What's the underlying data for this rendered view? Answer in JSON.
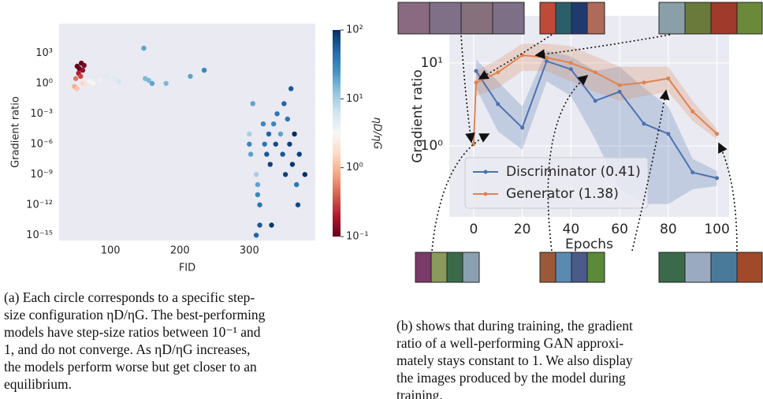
{
  "chart_data": [
    {
      "type": "scatter",
      "xlabel": "FID",
      "ylabel": "Gradient ratio",
      "log_y": true,
      "grid": false,
      "xlim": [
        26,
        395
      ],
      "xticks": [
        100,
        200,
        300
      ],
      "ylim": [
        3e-16,
        800000.0
      ],
      "yticks": [
        {
          "value": 1000.0,
          "label": "10³"
        },
        {
          "value": 1,
          "label": "10⁰"
        },
        {
          "value": 0.001,
          "label": "10⁻³"
        },
        {
          "value": 1e-06,
          "label": "10⁻⁶"
        },
        {
          "value": 1e-09,
          "label": "10⁻⁹"
        },
        {
          "value": 1e-12,
          "label": "10⁻¹²"
        },
        {
          "value": 1e-15,
          "label": "10⁻¹⁵"
        }
      ],
      "colorbar_label": "ηD/ηG",
      "clim": [
        0.1,
        100
      ],
      "cticks": [
        {
          "value": 100,
          "label": "10²"
        },
        {
          "value": 10,
          "label": "10¹"
        },
        {
          "value": 1,
          "label": "10⁰"
        },
        {
          "value": 0.1,
          "label": "10⁻¹"
        }
      ],
      "colormap": [
        "#67001f",
        "#b2182b",
        "#d6604d",
        "#f4a582",
        "#fddbc7",
        "#f7f7f7",
        "#d1e5f0",
        "#92c5de",
        "#4393c3",
        "#2166ac",
        "#053061"
      ],
      "x": [
        52,
        55,
        58,
        60,
        54,
        62,
        57,
        50,
        48,
        52,
        60,
        65,
        70,
        75,
        85,
        95,
        105,
        112,
        148,
        150,
        155,
        160,
        180,
        215,
        235,
        300,
        305,
        300,
        302,
        310,
        312,
        312,
        315,
        310,
        315,
        320,
        322,
        325,
        328,
        330,
        332,
        335,
        338,
        340,
        345,
        348,
        350,
        352,
        355,
        358,
        360,
        362,
        365,
        368,
        370,
        372,
        380
      ],
      "values": [
        50,
        30,
        100,
        20,
        10,
        60,
        5,
        3,
        0.5,
        0.3,
        1,
        0.8,
        1.5,
        1,
        2,
        5,
        3,
        1.5,
        3000,
        3,
        2,
        1,
        1,
        5,
        20,
        1e-05,
        0.01,
        1e-06,
        1e-07,
        1e-09,
        1e-10,
        1e-11,
        1e-12,
        1e-15,
        1e-14,
        0.0001,
        1e-06,
        1e-07,
        1e-05,
        1e-08,
        1e-14,
        0.0001,
        1e-06,
        0.001,
        1e-05,
        1e-07,
        0.01,
        1e-09,
        0.0003,
        1e-06,
        0.3,
        1e-08,
        1e-05,
        1e-10,
        1e-12,
        1e-07,
        1e-09
      ],
      "color_values": [
        0.1,
        0.1,
        0.1,
        0.15,
        0.2,
        0.12,
        0.3,
        0.5,
        0.9,
        1.2,
        1.5,
        2,
        3,
        3,
        4,
        5,
        5,
        6,
        20,
        15,
        15,
        20,
        15,
        20,
        30,
        10,
        20,
        30,
        20,
        10,
        20,
        30,
        40,
        50,
        60,
        30,
        40,
        60,
        50,
        80,
        90,
        30,
        70,
        40,
        20,
        60,
        50,
        80,
        40,
        80,
        60,
        90,
        100,
        40,
        70,
        80,
        100
      ]
    },
    {
      "type": "line",
      "xlabel": "Epochs",
      "ylabel": "Gradient ratio",
      "log_y": true,
      "grid": true,
      "legend": "lower left",
      "xlim": [
        -10,
        105
      ],
      "xticks": [
        0,
        20,
        40,
        60,
        80,
        100
      ],
      "ylim": [
        0.14,
        37
      ],
      "yticks": [
        {
          "value": 10,
          "label": "10¹"
        },
        {
          "value": 1,
          "label": "10⁰"
        }
      ],
      "series": [
        {
          "name": "Discriminator (0.41)",
          "color": "#4c72b0",
          "x": [
            1,
            10,
            20,
            30,
            40,
            50,
            60,
            70,
            80,
            90,
            100
          ],
          "values": [
            8.0,
            3.2,
            1.66,
            10.5,
            8.4,
            3.5,
            4.5,
            1.85,
            1.4,
            0.48,
            0.41
          ],
          "lower": [
            5,
            1.5,
            0.9,
            6,
            4,
            1.2,
            0.3,
            0.2,
            0.2,
            0.3,
            0.33
          ],
          "upper": [
            11,
            6,
            3,
            14,
            12,
            8,
            9,
            5,
            3,
            0.7,
            0.5
          ]
        },
        {
          "name": "Generator (1.38)",
          "color": "#dd8452",
          "x": [
            0,
            1,
            10,
            20,
            30,
            40,
            50,
            60,
            70,
            80,
            90,
            100
          ],
          "values": [
            1.05,
            5.8,
            7.7,
            12.4,
            11.6,
            10,
            7.7,
            5.4,
            5.8,
            6.5,
            2.6,
            1.4
          ],
          "lower": [
            0.9,
            4,
            5,
            8,
            8,
            6,
            4.5,
            3.5,
            4,
            4.5,
            2,
            1.2
          ],
          "upper": [
            1.2,
            8,
            11,
            17,
            17,
            16,
            12,
            9,
            9,
            9,
            3.5,
            1.6
          ]
        }
      ]
    }
  ],
  "captions": {
    "a": [
      "(a) Each circle corresponds to a specific step-",
      "size configuration ηD/ηG. The best-performing",
      "models have step-size ratios between 10⁻¹ and",
      "1, and do not converge.  As ηD/ηG increases,",
      "the models perform worse but get closer to an",
      "equilibrium."
    ],
    "b": [
      "(b) shows that during training, the gradient",
      "ratio of a well-performing GAN approxi-",
      "mately stays constant to 1. We also display",
      "the images produced by the model during",
      "training."
    ]
  }
}
